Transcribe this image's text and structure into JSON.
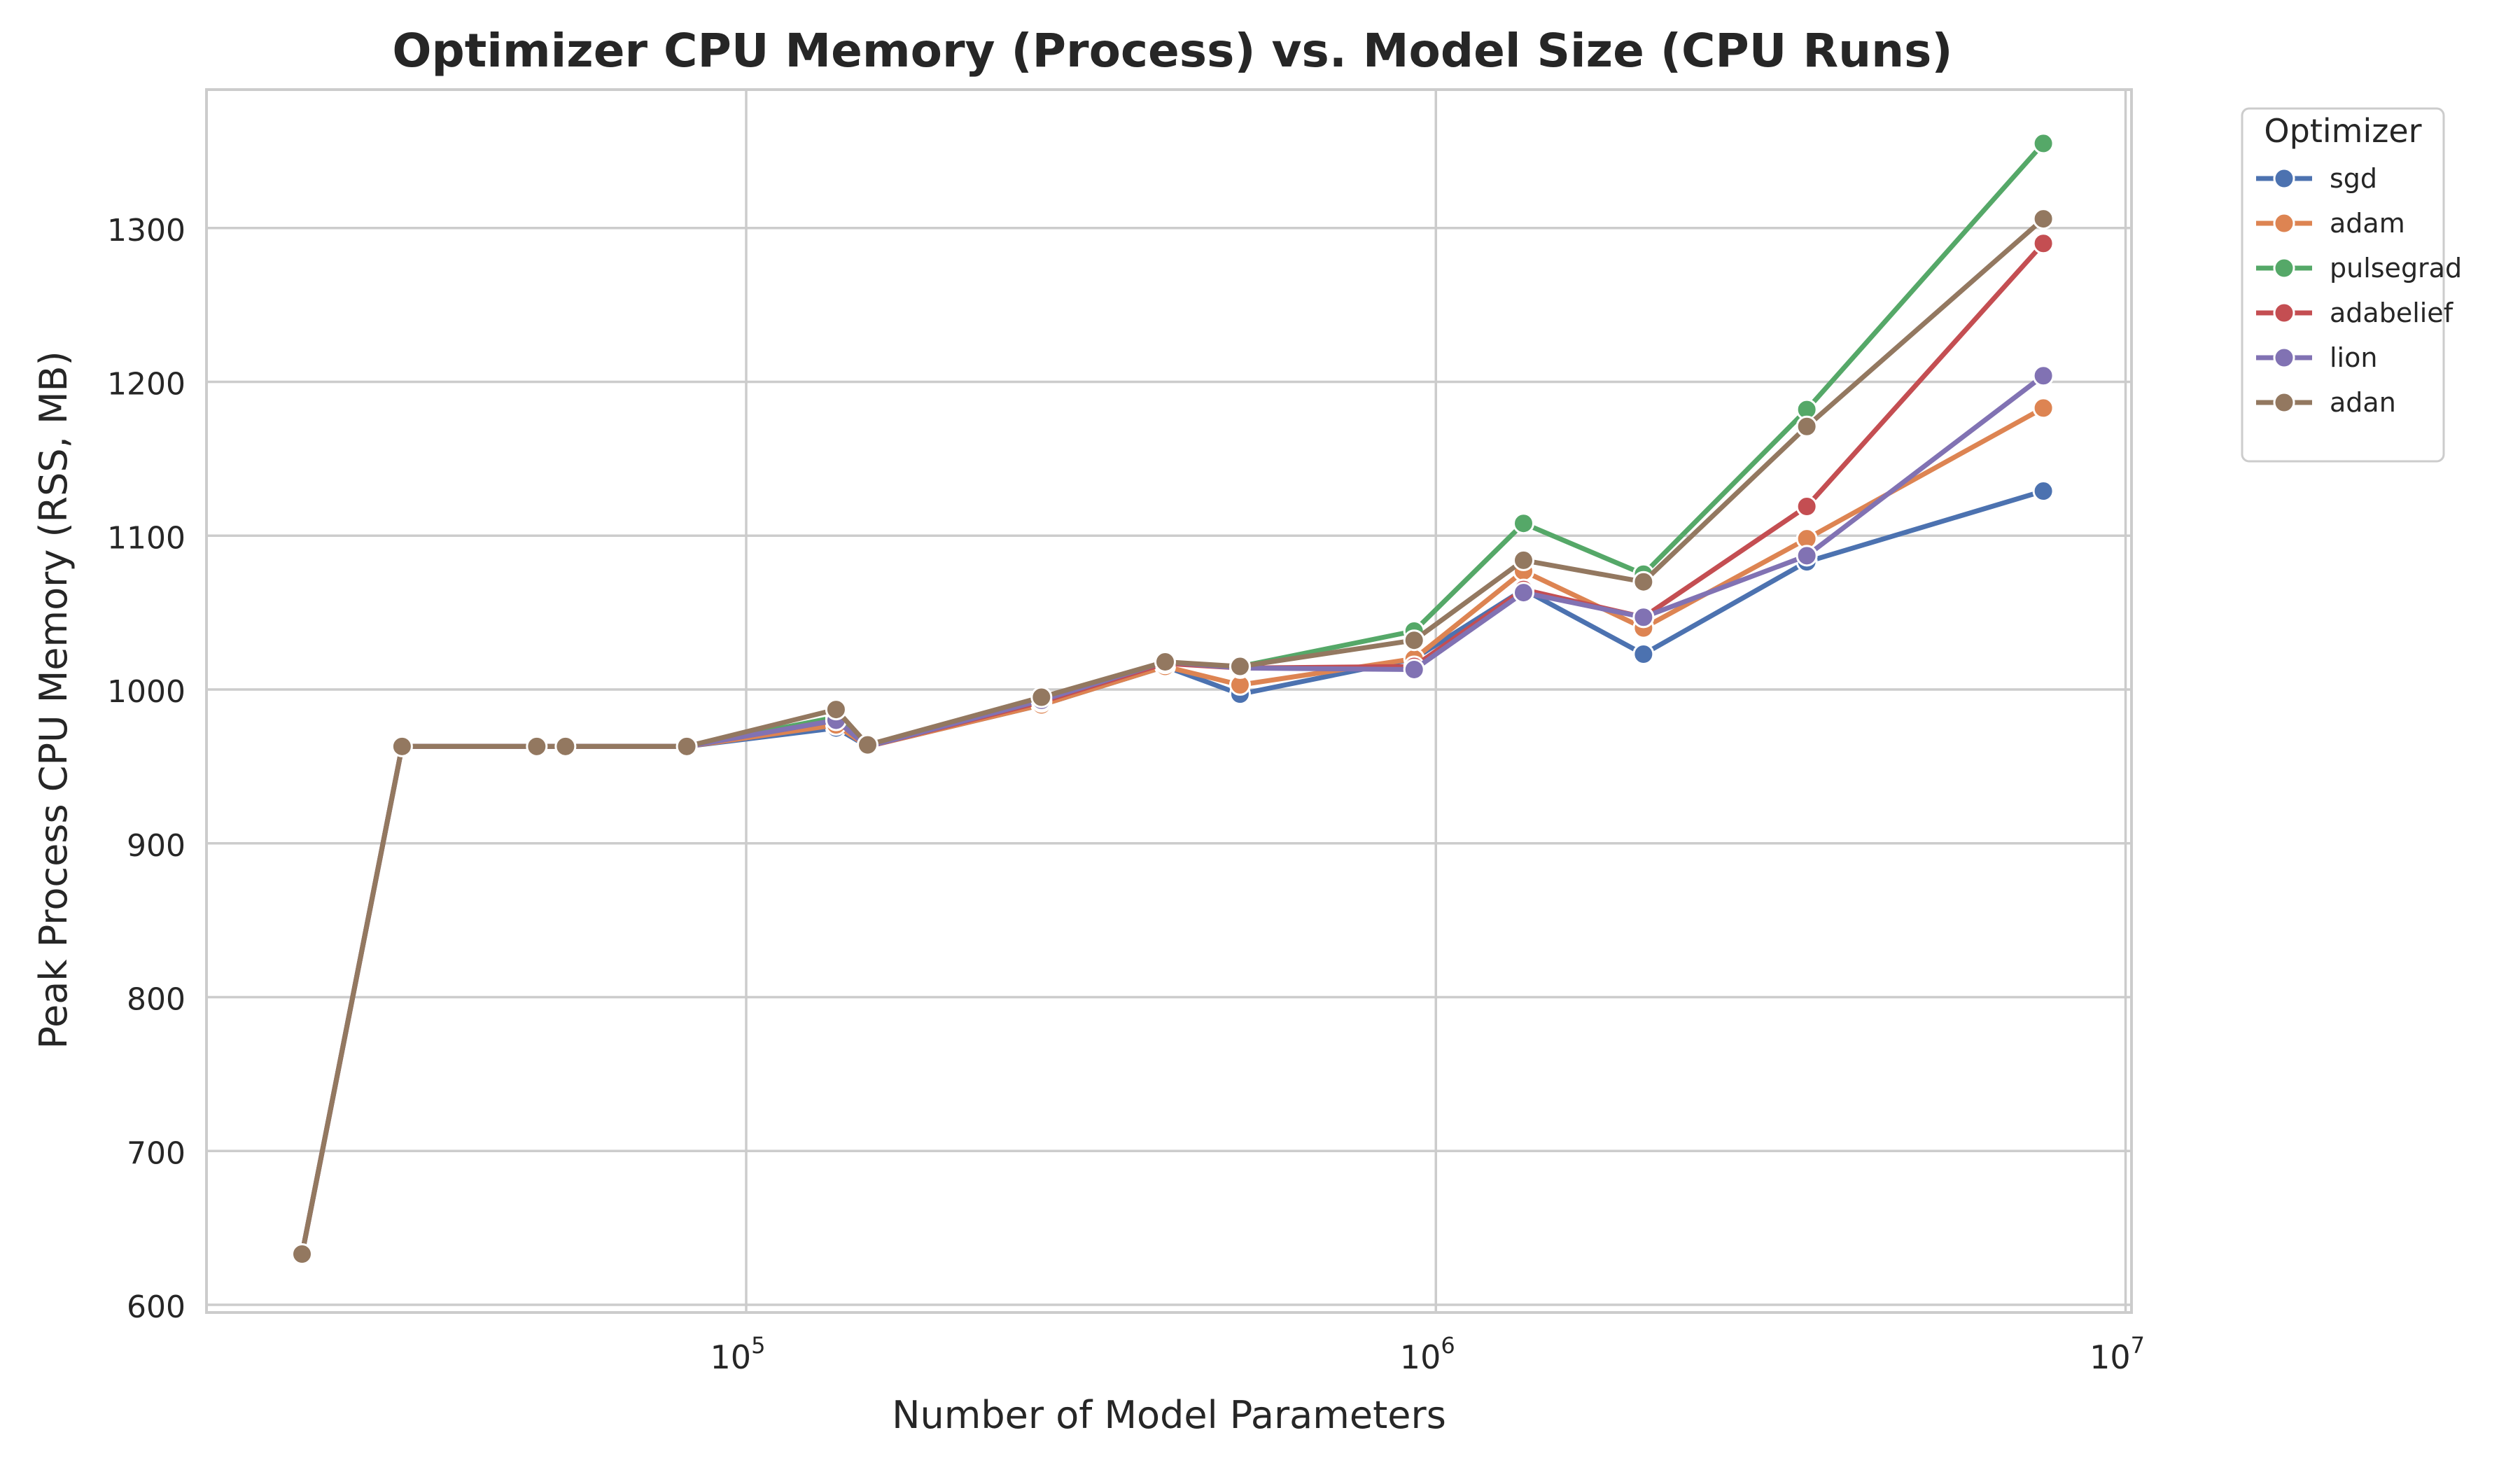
{
  "chart_data": {
    "type": "line",
    "title": "Optimizer CPU Memory (Process) vs. Model Size (CPU Runs)",
    "xlabel": "Number of Model Parameters",
    "ylabel": "Peak Process CPU Memory (RSS, MB)",
    "x_scale": "log",
    "xlim": [
      16500,
      10200000
    ],
    "ylim": [
      595,
      1390
    ],
    "grid": true,
    "x_ticks": [
      {
        "value": 100000,
        "base": "10",
        "exp": "5"
      },
      {
        "value": 1000000,
        "base": "10",
        "exp": "6"
      },
      {
        "value": 10000000,
        "base": "10",
        "exp": "7"
      }
    ],
    "y_ticks": [
      600,
      700,
      800,
      900,
      1000,
      1100,
      1200,
      1300
    ],
    "legend": {
      "title": "Optimizer",
      "placement": "outside-top-right"
    },
    "x": [
      22700,
      31700,
      49700,
      54700,
      82000,
      135000,
      150000,
      268000,
      405000,
      520000,
      930000,
      1340000,
      2000000,
      3450000,
      7600000
    ],
    "series": [
      {
        "name": "sgd",
        "color": "#4c72b0",
        "values": [
          633,
          963,
          963,
          963,
          963,
          975,
          963,
          990,
          1015,
          997,
          1020,
          1065,
          1023,
          1083,
          1129
        ]
      },
      {
        "name": "adam",
        "color": "#dd8452",
        "values": [
          633,
          963,
          963,
          963,
          963,
          977,
          963,
          990,
          1015,
          1003,
          1020,
          1077,
          1040,
          1098,
          1183
        ]
      },
      {
        "name": "pulsegrad",
        "color": "#55a868",
        "values": [
          633,
          963,
          963,
          963,
          963,
          982,
          964,
          993,
          1017,
          1015,
          1038,
          1108,
          1075,
          1182,
          1355
        ]
      },
      {
        "name": "adabelief",
        "color": "#c44e52",
        "values": [
          633,
          963,
          963,
          963,
          963,
          980,
          963,
          992,
          1017,
          1014,
          1015,
          1065,
          1047,
          1119,
          1290
        ]
      },
      {
        "name": "lion",
        "color": "#8172b3",
        "values": [
          633,
          963,
          963,
          963,
          963,
          980,
          963,
          993,
          1018,
          1014,
          1013,
          1063,
          1047,
          1087,
          1204
        ]
      },
      {
        "name": "adan",
        "color": "#937860",
        "values": [
          633,
          963,
          963,
          963,
          963,
          987,
          964,
          995,
          1018,
          1015,
          1032,
          1084,
          1070,
          1171,
          1306
        ]
      }
    ]
  }
}
